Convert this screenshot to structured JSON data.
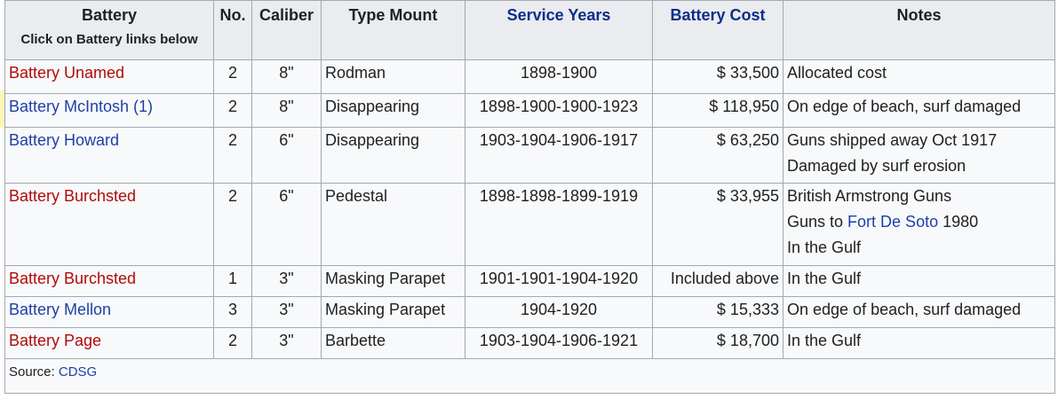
{
  "table": {
    "headers": {
      "battery": "Battery",
      "battery_sub": "Click on Battery links below",
      "no": "No.",
      "caliber": "Caliber",
      "type_mount": "Type Mount",
      "service_years": "Service Years",
      "battery_cost": "Battery Cost",
      "notes": "Notes"
    },
    "rows": [
      {
        "battery": "Battery Unamed",
        "no": "2",
        "caliber": "8\"",
        "type": "Rodman",
        "years": "1898-1900",
        "cost": "$ 33,500",
        "notes": [
          "Allocated cost"
        ]
      },
      {
        "battery": "Battery McIntosh (1)",
        "no": "2",
        "caliber": "8\"",
        "type": "Disappearing",
        "years": "1898-1900-1900-1923",
        "cost": "$ 118,950",
        "notes": [
          "On edge of beach, surf damaged"
        ]
      },
      {
        "battery": "Battery Howard",
        "no": "2",
        "caliber": "6\"",
        "type": "Disappearing",
        "years": "1903-1904-1906-1917",
        "cost": "$ 63,250",
        "notes": [
          "Guns shipped away Oct 1917",
          "Damaged by surf erosion"
        ]
      },
      {
        "battery": "Battery Burchsted",
        "no": "2",
        "caliber": "6\"",
        "type": "Pedestal",
        "years": "1898-1898-1899-1919",
        "cost": "$ 33,955",
        "notes": [
          "British Armstrong Guns",
          "Guns to ",
          "In the Gulf"
        ],
        "note_link": "Fort De Soto",
        "note_link_after": " 1980"
      },
      {
        "battery": "Battery Burchsted",
        "no": "1",
        "caliber": "3\"",
        "type": "Masking Parapet",
        "years": "1901-1901-1904-1920",
        "cost": "Included above",
        "notes": [
          "In the Gulf"
        ]
      },
      {
        "battery": "Battery Mellon",
        "no": "3",
        "caliber": "3\"",
        "type": "Masking Parapet",
        "years": "1904-1920",
        "cost": "$ 15,333",
        "notes": [
          "On edge of beach, surf damaged"
        ]
      },
      {
        "battery": "Battery Page",
        "no": "2",
        "caliber": "3\"",
        "type": "Barbette",
        "years": "1903-1904-1906-1921",
        "cost": "$ 18,700",
        "notes": [
          "In the Gulf"
        ]
      }
    ],
    "source_label": "Source: ",
    "source_link": "CDSG"
  },
  "colors": {
    "link_red": "#b00b0b",
    "link_blue": "#1f3fa8",
    "highlight": "#faf078"
  }
}
